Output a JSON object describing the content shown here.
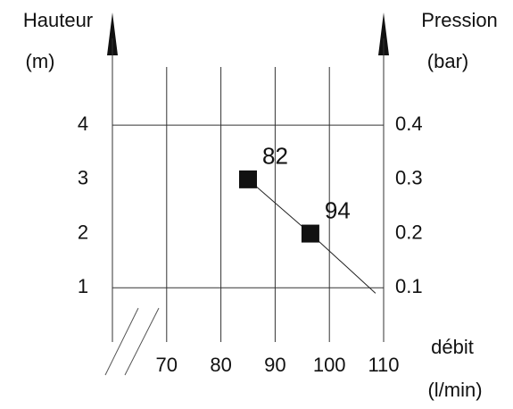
{
  "chart_data": {
    "type": "line",
    "y_label": [
      "Hauteur",
      "(m)"
    ],
    "y2_label": [
      "Pression",
      "(bar)"
    ],
    "x_label": [
      "débit",
      "(l/min)"
    ],
    "x": [
      85,
      96.5,
      108.5
    ],
    "series": [
      {
        "values": [
          3,
          2,
          0.9
        ],
        "color": "#222222",
        "point_labels": [
          "82",
          "94",
          null
        ]
      }
    ],
    "xlim": [
      60,
      110
    ],
    "xticks": [
      70,
      80,
      90,
      100,
      110
    ],
    "ylim": [
      0,
      5.6
    ],
    "yticks": [
      1,
      2,
      3,
      4
    ],
    "y2lim": [
      0,
      0.56
    ],
    "y2ticks": [
      0.1,
      0.2,
      0.3,
      0.4
    ],
    "hgrid": [
      1,
      4
    ],
    "grid": true
  }
}
